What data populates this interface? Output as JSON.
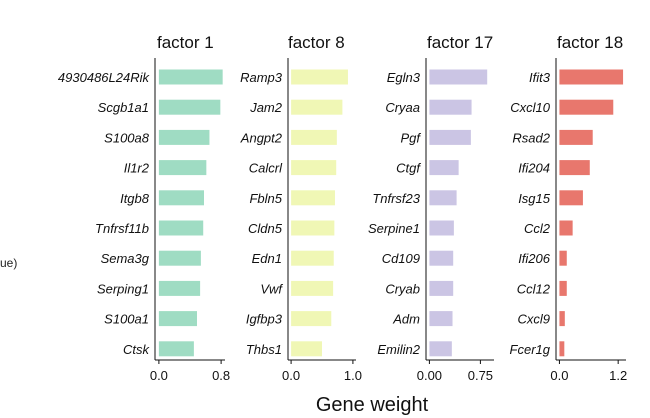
{
  "xlabel": "Gene weight",
  "cut_label": "ue)",
  "chart_data": [
    {
      "type": "bar",
      "orientation": "horizontal",
      "title": "factor 1",
      "color": "#9fdcc3",
      "categories": [
        "4930486L24Rik",
        "Scgb1a1",
        "S100a8",
        "Il1r2",
        "Itgb8",
        "Tnfrsf11b",
        "Sema3g",
        "Serping1",
        "S100a1",
        "Ctsk"
      ],
      "values": [
        0.82,
        0.79,
        0.65,
        0.61,
        0.58,
        0.57,
        0.54,
        0.53,
        0.49,
        0.45
      ],
      "xlim": [
        -0.05,
        0.85
      ],
      "ticks": [
        0.0,
        0.8
      ],
      "tick_labels": [
        "0.0",
        "0.8"
      ]
    },
    {
      "type": "bar",
      "orientation": "horizontal",
      "title": "factor 8",
      "color": "#f0f7b5",
      "categories": [
        "Ramp3",
        "Jam2",
        "Angpt2",
        "Calcrl",
        "Fbln5",
        "Cldn5",
        "Edn1",
        "Vwf",
        "Igfbp3",
        "Thbs1"
      ],
      "values": [
        0.92,
        0.83,
        0.74,
        0.73,
        0.71,
        0.7,
        0.69,
        0.68,
        0.65,
        0.5
      ],
      "xlim": [
        -0.05,
        1.05
      ],
      "ticks": [
        0.0,
        1.0
      ],
      "tick_labels": [
        "0.0",
        "1.0"
      ]
    },
    {
      "type": "bar",
      "orientation": "horizontal",
      "title": "factor 17",
      "color": "#cbc5e4",
      "categories": [
        "Egln3",
        "Cryaa",
        "Pgf",
        "Ctgf",
        "Tnfrsf23",
        "Serpine1",
        "Cd109",
        "Cryab",
        "Adm",
        "Emilin2"
      ],
      "values": [
        0.85,
        0.62,
        0.61,
        0.43,
        0.4,
        0.36,
        0.35,
        0.35,
        0.34,
        0.33
      ],
      "xlim": [
        -0.05,
        0.95
      ],
      "ticks": [
        0.0,
        0.75
      ],
      "tick_labels": [
        "0.00",
        "0.75"
      ]
    },
    {
      "type": "bar",
      "orientation": "horizontal",
      "title": "factor 18",
      "color": "#e8776d",
      "categories": [
        "Ifit3",
        "Cxcl10",
        "Rsad2",
        "Ifi204",
        "Isg15",
        "Ccl2",
        "Ifi206",
        "Ccl12",
        "Cxcl9",
        "Fcer1g"
      ],
      "values": [
        1.3,
        1.1,
        0.68,
        0.62,
        0.48,
        0.27,
        0.15,
        0.15,
        0.11,
        0.1
      ],
      "xlim": [
        -0.07,
        1.36
      ],
      "ticks": [
        0.0,
        1.2
      ],
      "tick_labels": [
        "0.0",
        "1.2"
      ]
    }
  ]
}
